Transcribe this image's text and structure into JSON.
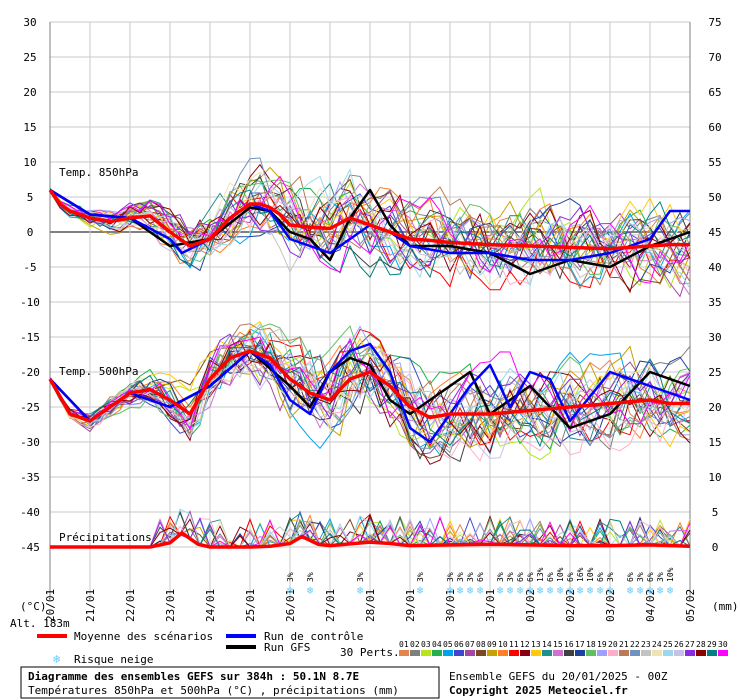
{
  "chart_data": {
    "type": "line",
    "title": "Diagramme des ensembles GEFS sur 384h : 50.1N 8.7E",
    "subtitle": "Températures 850hPa et 500hPa (°C) , précipitations (mm)",
    "run_info": "Ensemble GEFS du 20/01/2025 - 00Z",
    "copyright": "Copyright 2025 Meteociel.fr",
    "ylabel_left": "(°C)",
    "ylabel_right": "(mm)",
    "altitude": "Alt. 183m",
    "ylim_left": [
      -45,
      30
    ],
    "ylim_right": [
      0,
      75
    ],
    "yticks_left": [
      30,
      25,
      20,
      15,
      10,
      5,
      0,
      -5,
      -10,
      -15,
      -20,
      -25,
      -30,
      -35,
      -40,
      -45
    ],
    "yticks_right": [
      75,
      70,
      65,
      60,
      55,
      50,
      45,
      40,
      35,
      30,
      25,
      20,
      15,
      10,
      5,
      0
    ],
    "x_day_labels": [
      "20/01",
      "21/01",
      "22/01",
      "23/01",
      "24/01",
      "25/01",
      "26/01",
      "27/01",
      "28/01",
      "29/01",
      "30/01",
      "31/01",
      "01/02",
      "02/02",
      "03/02",
      "04/02",
      "05/02"
    ],
    "panel_labels": [
      "Temp. 850hPa",
      "Temp. 500hPa",
      "Précipitations"
    ],
    "legend": {
      "mean": "Moyenne des scénarios",
      "control": "Run de contrôle",
      "gfs": "Run GFS",
      "snow": "Risque neige",
      "perts": "30 Perts."
    },
    "member_numbers": [
      "01",
      "02",
      "03",
      "04",
      "05",
      "06",
      "07",
      "08",
      "09",
      "10",
      "11",
      "12",
      "13",
      "14",
      "15",
      "16",
      "17",
      "18",
      "19",
      "20",
      "21",
      "22",
      "23",
      "24",
      "25",
      "26",
      "27",
      "28",
      "29",
      "30"
    ],
    "member_colors": [
      "#e6844a",
      "#7f7f7f",
      "#b5e61d",
      "#22b14c",
      "#00a2e8",
      "#3f48cc",
      "#a349a4",
      "#7b4a1e",
      "#c8a000",
      "#ff7f27",
      "#ff0000",
      "#880015",
      "#ffc90e",
      "#1f8f8f",
      "#d070d0",
      "#404040",
      "#2040a0",
      "#60c060",
      "#a0a0ff",
      "#ffaec9",
      "#b97a57",
      "#7092be",
      "#c3c3c3",
      "#efe4b0",
      "#99d9ea",
      "#c8bfe7",
      "#8a2be2",
      "#8b0000",
      "#008080",
      "#ff00ff"
    ],
    "colors": {
      "mean": "#ff0000",
      "control": "#0000ff",
      "gfs": "#000000",
      "snow": "#66ccff"
    },
    "series": [
      {
        "name": "Moyenne des scénarios",
        "panel": "Temp. 850hPa",
        "x_days": [
          0,
          0.25,
          0.5,
          1,
          1.5,
          2,
          2.5,
          3,
          3.5,
          4,
          4.5,
          5,
          5.25,
          5.5,
          5.75,
          6,
          6.5,
          7,
          7.5,
          8,
          8.5,
          9,
          9.5,
          10,
          11,
          12,
          13,
          14,
          15,
          15.5,
          16
        ],
        "values": [
          6,
          4,
          3,
          2,
          1.5,
          2,
          2.3,
          0,
          -2,
          -1,
          2,
          4,
          4,
          3.5,
          2.5,
          1,
          0.7,
          0.5,
          2,
          1,
          0,
          -1,
          -1.2,
          -1.5,
          -1.8,
          -2,
          -2.2,
          -2.4,
          -2,
          -1.8,
          -1.8
        ]
      },
      {
        "name": "Moyenne des scénarios",
        "panel": "Temp. 500hPa",
        "x_days": [
          0,
          0.5,
          1,
          1.5,
          2,
          2.5,
          3,
          3.5,
          4,
          4.5,
          5,
          5.5,
          6,
          6.5,
          7,
          7.5,
          8,
          8.5,
          9,
          9.5,
          10,
          11,
          12,
          13,
          14,
          15,
          15.5,
          16
        ],
        "values": [
          -21,
          -26,
          -27,
          -25,
          -23,
          -22.5,
          -24,
          -26,
          -21,
          -18,
          -17,
          -18,
          -21,
          -23,
          -24,
          -21,
          -20,
          -22,
          -25,
          -26.5,
          -26,
          -26,
          -25.5,
          -25,
          -24.5,
          -24,
          -24.5,
          -24.5
        ]
      },
      {
        "name": "Moyenne des scénarios",
        "panel": "Précipitations",
        "x_days": [
          0,
          2.5,
          3,
          3.3,
          3.7,
          4,
          5,
          5.5,
          6,
          6.3,
          6.7,
          7,
          8,
          8.5,
          9,
          10,
          11,
          12,
          13,
          14,
          15,
          16
        ],
        "values": [
          0,
          0,
          0.6,
          2,
          0.4,
          0,
          0,
          0.1,
          0.5,
          1.5,
          0.4,
          0.2,
          0.7,
          0.5,
          0.2,
          0.3,
          0.4,
          0.3,
          0.2,
          0.2,
          0.3,
          0.1
        ]
      },
      {
        "name": "Run de contrôle",
        "panel": "Temp. 850hPa",
        "x_days": [
          0,
          1,
          2,
          3,
          3.3,
          4,
          4.5,
          5,
          5.5,
          6,
          6.5,
          7,
          7.5,
          8,
          8.5,
          9,
          10,
          11,
          12,
          13,
          14,
          15,
          15.5,
          16
        ],
        "values": [
          6,
          2.5,
          2,
          -1,
          -3,
          -1,
          2,
          4,
          3,
          -1,
          -2,
          -3,
          -1,
          1,
          0,
          -2,
          -3,
          -3,
          -4,
          -4,
          -3,
          -1,
          3,
          3
        ]
      },
      {
        "name": "Run de contrôle",
        "panel": "Temp. 500hPa",
        "x_days": [
          0,
          1,
          2,
          3,
          4,
          5,
          5.5,
          6,
          6.5,
          7,
          7.5,
          8,
          8.5,
          9,
          9.5,
          10,
          10.5,
          11,
          11.5,
          12,
          12.5,
          13,
          14,
          15,
          16
        ],
        "values": [
          -21,
          -27,
          -23,
          -25,
          -22,
          -17,
          -19,
          -24,
          -26,
          -20,
          -17,
          -16,
          -20,
          -28,
          -30,
          -26,
          -22,
          -19,
          -25,
          -20,
          -21,
          -27,
          -20,
          -22,
          -24
        ]
      },
      {
        "name": "Run GFS",
        "panel": "Temp. 850hPa",
        "x_days": [
          0,
          1,
          2,
          3,
          4,
          5,
          5.5,
          6,
          6.5,
          7,
          7.5,
          8,
          8.5,
          9,
          10,
          11,
          12,
          13,
          14,
          15,
          16
        ],
        "values": [
          6,
          2.5,
          2,
          -2,
          -1,
          3.5,
          3,
          0,
          -1,
          -4,
          2,
          6,
          1,
          -2,
          -2,
          -3,
          -6,
          -4,
          -5,
          -2,
          0
        ]
      },
      {
        "name": "Run GFS",
        "panel": "Temp. 500hPa",
        "x_days": [
          0,
          1,
          2,
          3,
          4,
          5,
          6,
          6.5,
          7,
          7.5,
          8,
          8.5,
          9,
          10,
          10.5,
          11,
          12,
          13,
          14,
          15,
          16
        ],
        "values": [
          -21,
          -27,
          -23,
          -25,
          -22,
          -17,
          -22,
          -25,
          -20,
          -18,
          -19,
          -24,
          -26,
          -22,
          -20,
          -26,
          -22,
          -28,
          -26,
          -20,
          -22
        ]
      }
    ],
    "snow_risk": [
      {
        "day": 6.0,
        "value": "3%"
      },
      {
        "day": 6.5,
        "value": "3%"
      },
      {
        "day": 7.75,
        "value": "3%"
      },
      {
        "day": 9.25,
        "value": "3%"
      },
      {
        "day": 10.0,
        "value": "3%"
      },
      {
        "day": 10.25,
        "value": "3%"
      },
      {
        "day": 10.5,
        "value": "3%"
      },
      {
        "day": 10.75,
        "value": "6%"
      },
      {
        "day": 11.25,
        "value": "3%"
      },
      {
        "day": 11.5,
        "value": "3%"
      },
      {
        "day": 11.75,
        "value": "6%"
      },
      {
        "day": 12.0,
        "value": "6%"
      },
      {
        "day": 12.25,
        "value": "13%"
      },
      {
        "day": 12.5,
        "value": "6%"
      },
      {
        "day": 12.75,
        "value": "10%"
      },
      {
        "day": 13.0,
        "value": "6%"
      },
      {
        "day": 13.25,
        "value": "16%"
      },
      {
        "day": 13.5,
        "value": "10%"
      },
      {
        "day": 13.75,
        "value": "6%"
      },
      {
        "day": 14.0,
        "value": "3%"
      },
      {
        "day": 14.5,
        "value": "6%"
      },
      {
        "day": 14.75,
        "value": "3%"
      },
      {
        "day": 15.0,
        "value": "6%"
      },
      {
        "day": 15.25,
        "value": "3%"
      },
      {
        "day": 15.5,
        "value": "10%"
      }
    ]
  }
}
